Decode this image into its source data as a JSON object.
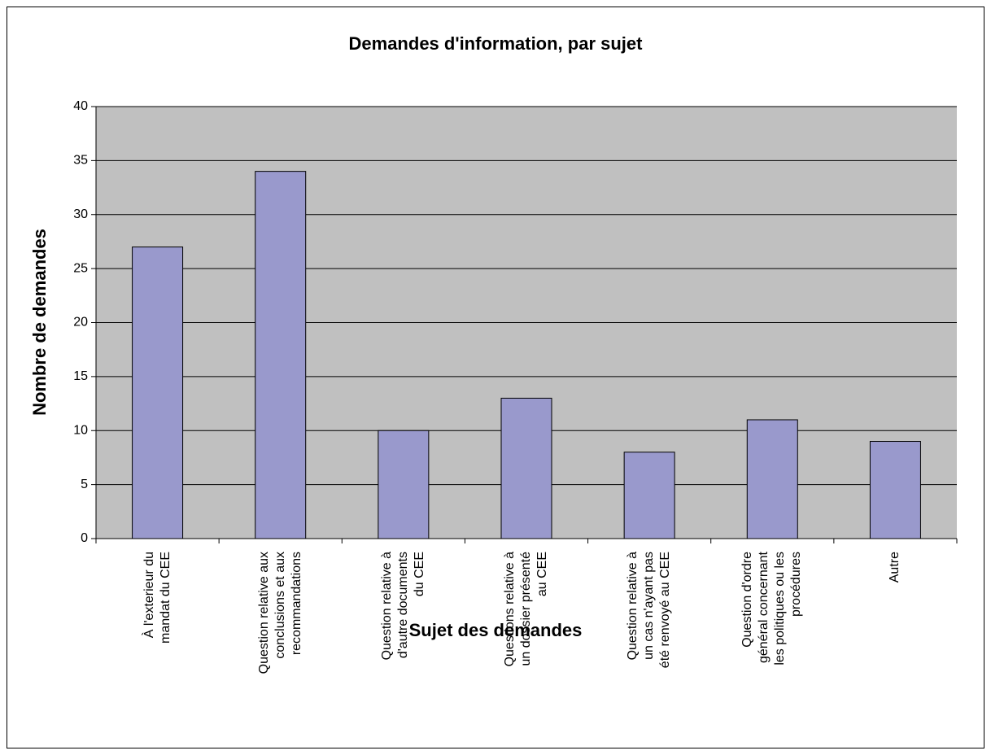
{
  "chart_data": {
    "type": "bar",
    "title": "Demandes d'information, par sujet",
    "x_label": "Sujet des demandes",
    "y_label": "Nombre de demandes",
    "categories": [
      "À l'exterieur du mandat du CEE",
      "Question relative aux conclusions et aux recommandations",
      "Question relative à d'autre documents du CEE",
      "Questions relative à un dossier présenté au CEE",
      "Question relative à un cas n'ayant pas été renvoyé au CEE",
      "Question d'ordre général concernant les politiques ou les procédures",
      "Autre"
    ],
    "values": [
      27,
      34,
      10,
      13,
      8,
      11,
      9
    ],
    "color": "#9999cc",
    "ylim": [
      0,
      40
    ],
    "yticks": [
      0,
      5,
      10,
      15,
      20,
      25,
      30,
      35,
      40
    ],
    "grid": true
  }
}
